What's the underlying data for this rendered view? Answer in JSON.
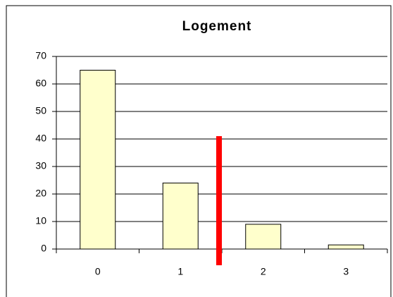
{
  "chart_data": {
    "type": "bar",
    "title": "Logement",
    "categories": [
      "0",
      "1",
      "2",
      "3"
    ],
    "values": [
      65,
      24,
      9,
      1.5
    ],
    "color": "#ffffcc",
    "ylim": [
      0,
      70
    ],
    "yticks": [
      0,
      10,
      20,
      30,
      40,
      50,
      60,
      70
    ],
    "grid": true
  }
}
